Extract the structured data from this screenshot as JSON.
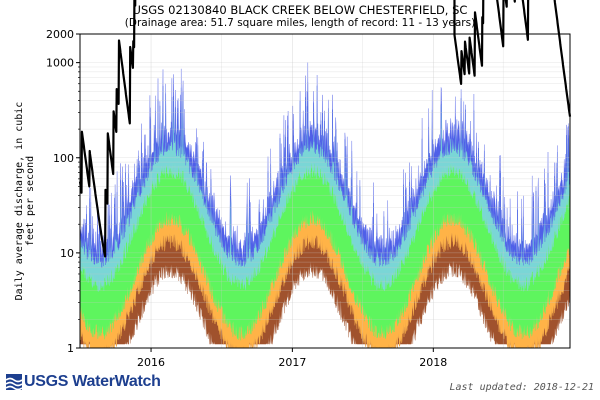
{
  "chart_data": {
    "type": "area",
    "title": "USGS 02130840 BLACK CREEK BELOW CHESTERFIELD, SC",
    "subtitle": "(Drainage area: 51.7 square miles, length of record: 11 - 13 years)",
    "ylabel": "Daily average discharge, in cubic feet per second",
    "xlabel": "",
    "yscale": "log",
    "ylim": [
      1,
      2000
    ],
    "xlim": [
      "2015-07-01",
      "2018-12-21"
    ],
    "y_ticks": [
      1,
      10,
      100,
      1000,
      2000
    ],
    "x_tick_labels": [
      "2016",
      "2017",
      "2018"
    ],
    "x_tick_dates": [
      "2016-01-01",
      "2017-01-01",
      "2018-01-01"
    ],
    "grid": true,
    "bands": [
      {
        "color": "#a0522d",
        "lower_pct": 0
      },
      {
        "color": "#ffb347",
        "lower_pct": 10
      },
      {
        "color": "#5ef55e",
        "lower_pct": 25
      },
      {
        "color": "#7ad6d6",
        "lower_pct": 75
      },
      {
        "color": "#4f5fe8",
        "lower_pct": 90
      }
    ],
    "series_color": "#000000"
  },
  "footer": {
    "logo_text": "USGS WaterWatch",
    "last_updated": "Last updated: 2018-12-21"
  }
}
